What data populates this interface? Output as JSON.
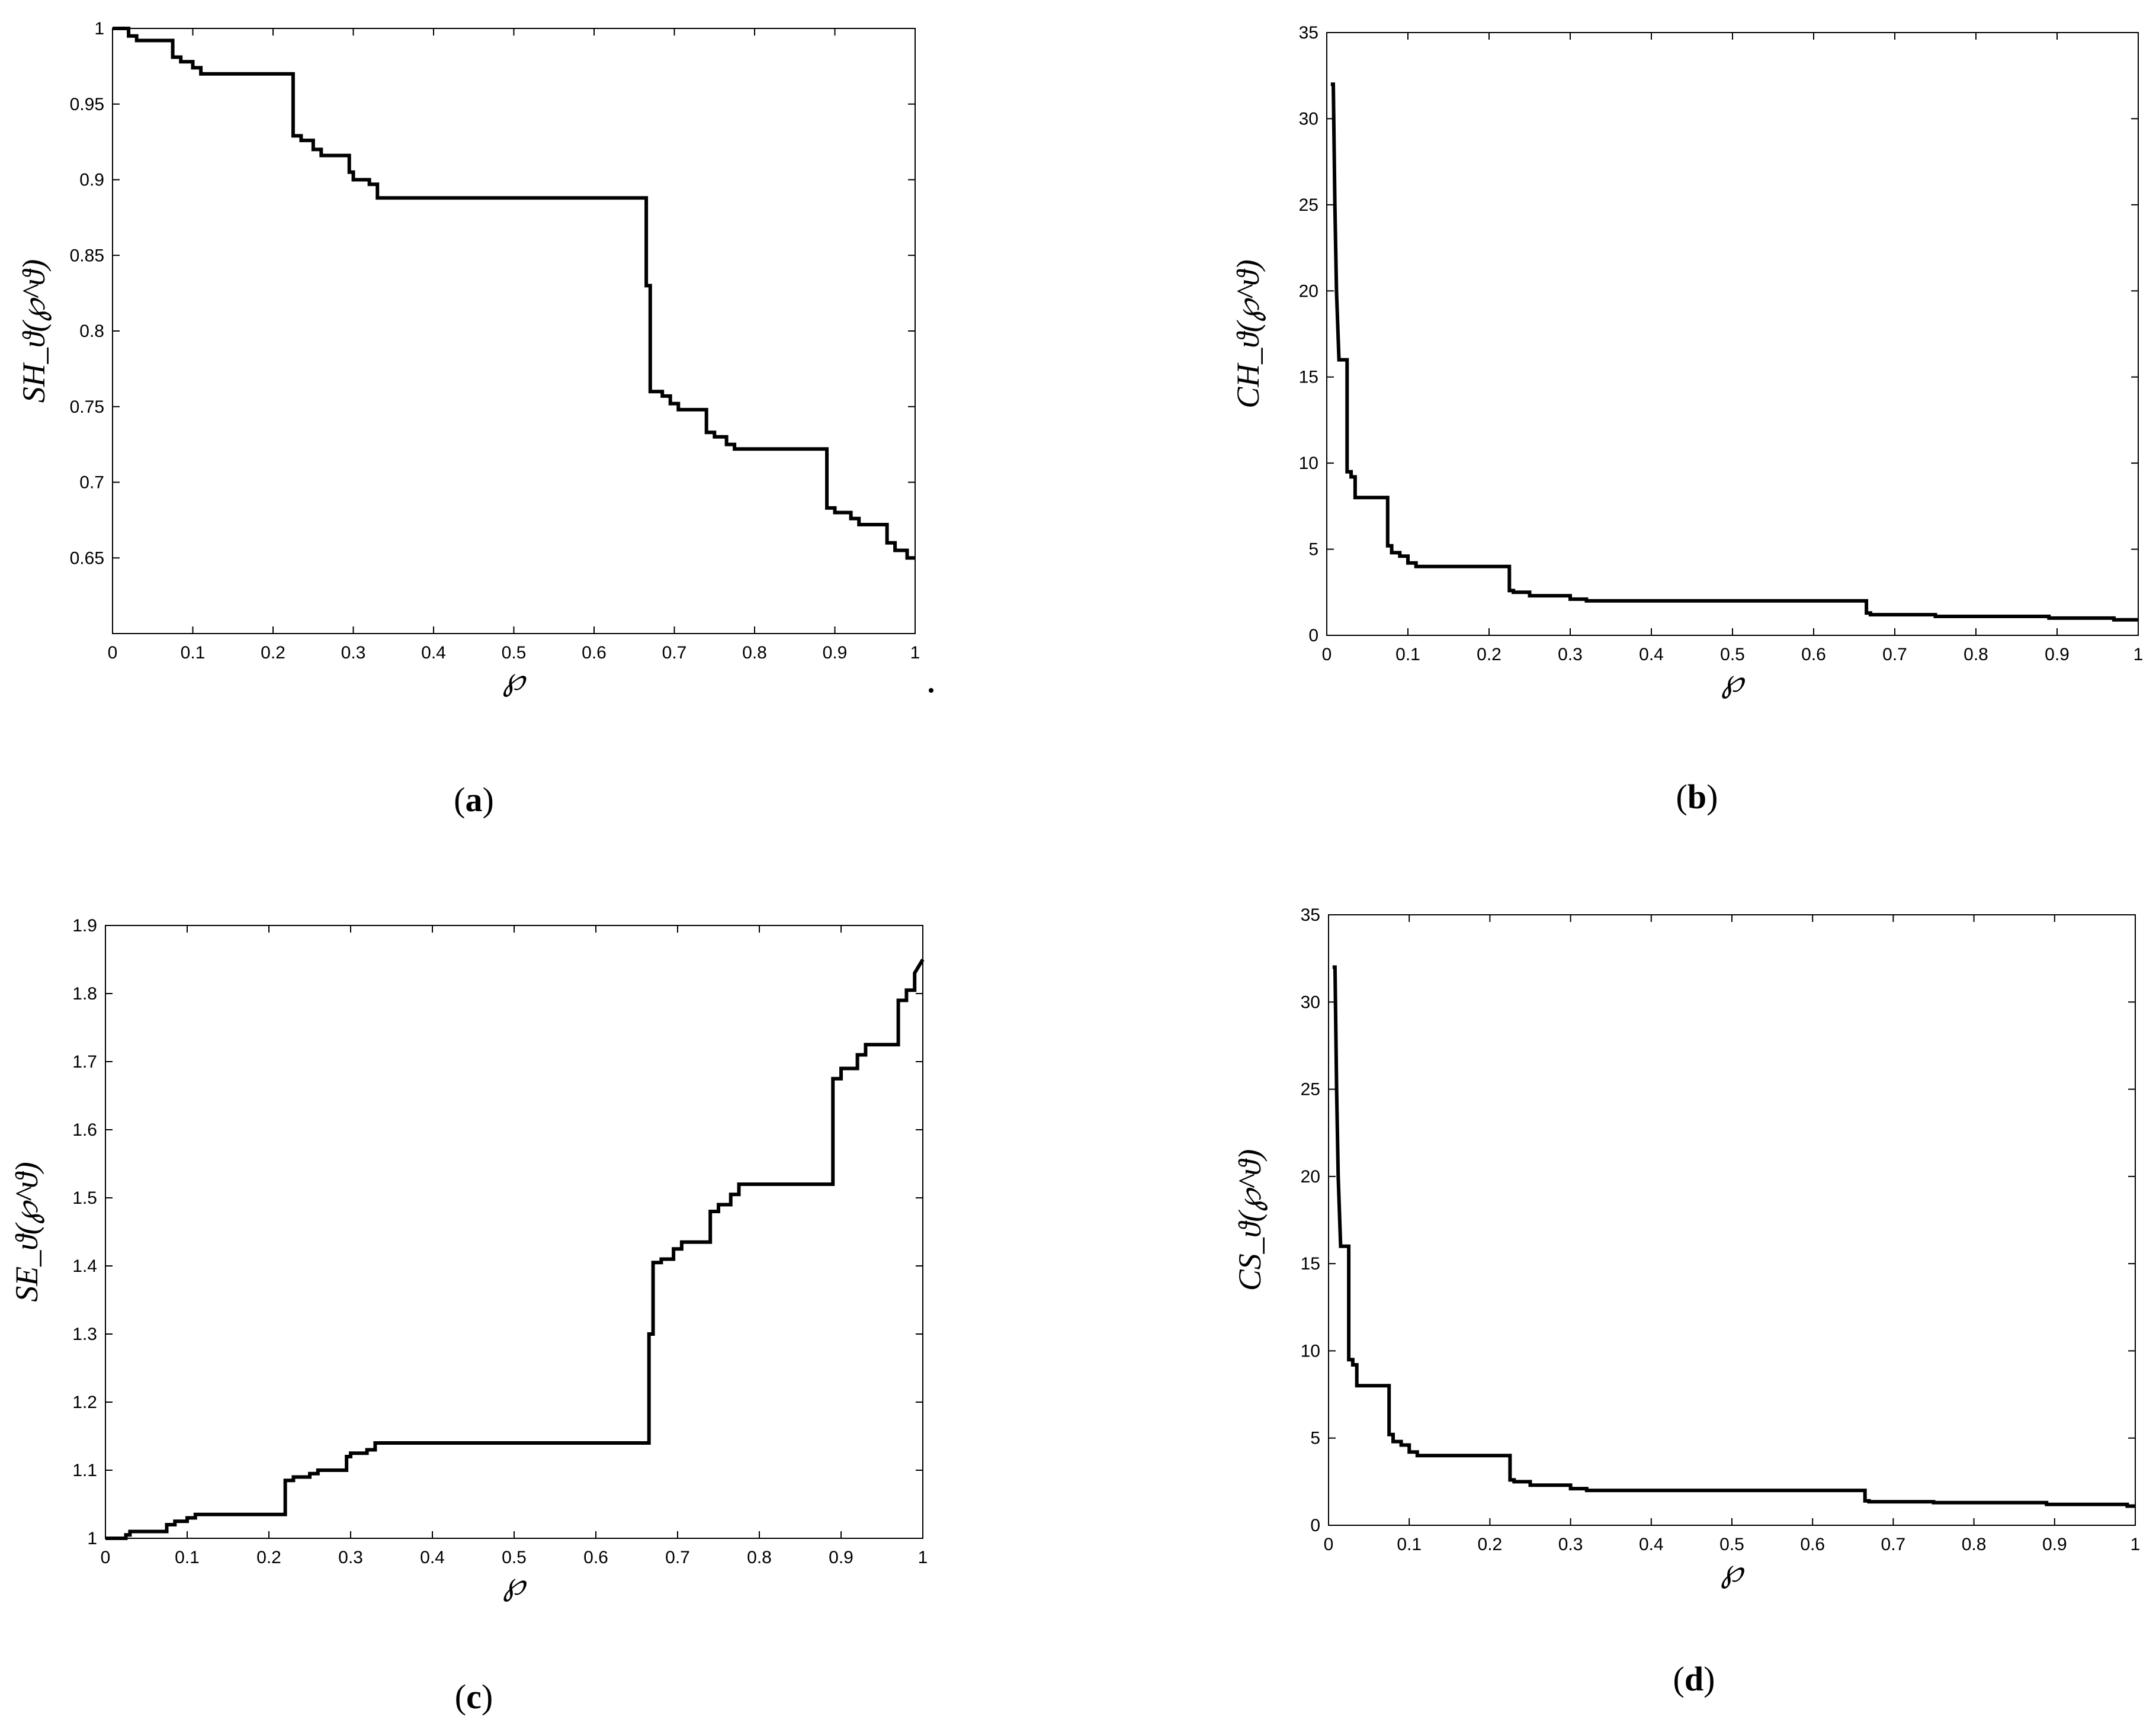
{
  "chart_data": [
    {
      "panel": "a",
      "type": "line",
      "title": "",
      "xlabel": "℘",
      "ylabel": "SH_ϑ(℘^ϑ)",
      "xlim": [
        0,
        1
      ],
      "ylim": [
        0.6,
        1
      ],
      "xticks": [
        "0",
        "0.1",
        "0.2",
        "0.3",
        "0.4",
        "0.5",
        "0.6",
        "0.7",
        "0.8",
        "0.9",
        "1"
      ],
      "yticks": [
        "0.65",
        "0.7",
        "0.75",
        "0.8",
        "0.85",
        "0.9",
        "0.95",
        "1"
      ],
      "grid": false,
      "series": [
        {
          "x": [
            0,
            0.02,
            0.02,
            0.03,
            0.03,
            0.075,
            0.075,
            0.085,
            0.085,
            0.1,
            0.1,
            0.11,
            0.11,
            0.225,
            0.225,
            0.235,
            0.235,
            0.25,
            0.25,
            0.26,
            0.26,
            0.295,
            0.295,
            0.3,
            0.3,
            0.32,
            0.32,
            0.33,
            0.33,
            0.665,
            0.665,
            0.67,
            0.67,
            0.685,
            0.685,
            0.695,
            0.695,
            0.705,
            0.705,
            0.74,
            0.74,
            0.75,
            0.75,
            0.765,
            0.765,
            0.775,
            0.775,
            0.89,
            0.89,
            0.9,
            0.9,
            0.92,
            0.92,
            0.93,
            0.93,
            0.965,
            0.965,
            0.975,
            0.975,
            0.99,
            0.99,
            1
          ],
          "y": [
            1,
            1,
            0.995,
            0.995,
            0.992,
            0.992,
            0.981,
            0.981,
            0.978,
            0.978,
            0.974,
            0.974,
            0.97,
            0.97,
            0.929,
            0.929,
            0.926,
            0.926,
            0.92,
            0.92,
            0.916,
            0.916,
            0.905,
            0.905,
            0.9,
            0.9,
            0.897,
            0.897,
            0.888,
            0.888,
            0.83,
            0.83,
            0.76,
            0.76,
            0.757,
            0.757,
            0.752,
            0.752,
            0.748,
            0.748,
            0.733,
            0.733,
            0.73,
            0.73,
            0.725,
            0.725,
            0.722,
            0.722,
            0.683,
            0.683,
            0.68,
            0.68,
            0.676,
            0.676,
            0.672,
            0.672,
            0.66,
            0.66,
            0.655,
            0.655,
            0.65,
            0.65
          ]
        }
      ],
      "caption": {
        "prefix": "(",
        "letter": "a",
        "suffix": ")"
      }
    },
    {
      "panel": "b",
      "type": "line",
      "title": "",
      "xlabel": "℘",
      "ylabel": "CH_ϑ(℘^ϑ)",
      "xlim": [
        0,
        1
      ],
      "ylim": [
        0,
        35
      ],
      "xticks": [
        "0",
        "0.1",
        "0.2",
        "0.3",
        "0.4",
        "0.5",
        "0.6",
        "0.7",
        "0.8",
        "0.9",
        "1"
      ],
      "yticks": [
        "0",
        "5",
        "10",
        "15",
        "20",
        "25",
        "30",
        "35"
      ],
      "grid": false,
      "series": [
        {
          "x": [
            0.005,
            0.008,
            0.01,
            0.012,
            0.015,
            0.015,
            0.025,
            0.025,
            0.03,
            0.03,
            0.035,
            0.035,
            0.075,
            0.075,
            0.08,
            0.08,
            0.09,
            0.09,
            0.1,
            0.1,
            0.11,
            0.11,
            0.225,
            0.225,
            0.23,
            0.23,
            0.25,
            0.25,
            0.3,
            0.3,
            0.32,
            0.32,
            0.665,
            0.665,
            0.67,
            0.67,
            0.75,
            0.75,
            0.89,
            0.89,
            0.97,
            0.97,
            1
          ],
          "y": [
            32,
            32,
            25,
            20,
            16,
            16,
            16,
            9.5,
            9.5,
            9.2,
            9.2,
            8,
            8,
            5.2,
            5.2,
            4.8,
            4.8,
            4.6,
            4.6,
            4.2,
            4.2,
            4,
            4,
            2.6,
            2.6,
            2.5,
            2.5,
            2.3,
            2.3,
            2.1,
            2.1,
            2,
            2,
            1.3,
            1.3,
            1.2,
            1.2,
            1.1,
            1.1,
            1,
            1,
            0.9,
            0.9
          ]
        }
      ],
      "caption": {
        "prefix": "(",
        "letter": "b",
        "suffix": ")"
      }
    },
    {
      "panel": "c",
      "type": "line",
      "title": "",
      "xlabel": "℘",
      "ylabel": "SE_ϑ(℘^ϑ)",
      "xlim": [
        0,
        1
      ],
      "ylim": [
        1,
        1.9
      ],
      "xticks": [
        "0",
        "0.1",
        "0.2",
        "0.3",
        "0.4",
        "0.5",
        "0.6",
        "0.7",
        "0.8",
        "0.9",
        "1"
      ],
      "yticks": [
        "1",
        "1.1",
        "1.2",
        "1.3",
        "1.4",
        "1.5",
        "1.6",
        "1.7",
        "1.8",
        "1.9"
      ],
      "grid": false,
      "series": [
        {
          "x": [
            0,
            0.025,
            0.025,
            0.03,
            0.03,
            0.075,
            0.075,
            0.085,
            0.085,
            0.1,
            0.1,
            0.11,
            0.11,
            0.22,
            0.22,
            0.23,
            0.23,
            0.25,
            0.25,
            0.26,
            0.26,
            0.295,
            0.295,
            0.3,
            0.3,
            0.32,
            0.32,
            0.33,
            0.33,
            0.665,
            0.665,
            0.67,
            0.67,
            0.68,
            0.68,
            0.695,
            0.695,
            0.705,
            0.705,
            0.74,
            0.74,
            0.75,
            0.75,
            0.765,
            0.765,
            0.775,
            0.775,
            0.89,
            0.89,
            0.9,
            0.9,
            0.92,
            0.92,
            0.93,
            0.93,
            0.97,
            0.97,
            0.98,
            0.98,
            0.99,
            0.99,
            1
          ],
          "y": [
            1,
            1,
            1.005,
            1.005,
            1.01,
            1.01,
            1.02,
            1.02,
            1.025,
            1.025,
            1.03,
            1.03,
            1.035,
            1.035,
            1.085,
            1.085,
            1.09,
            1.09,
            1.095,
            1.095,
            1.1,
            1.1,
            1.12,
            1.12,
            1.125,
            1.125,
            1.13,
            1.13,
            1.14,
            1.14,
            1.3,
            1.3,
            1.405,
            1.405,
            1.41,
            1.41,
            1.425,
            1.425,
            1.435,
            1.435,
            1.48,
            1.48,
            1.49,
            1.49,
            1.505,
            1.505,
            1.52,
            1.52,
            1.675,
            1.675,
            1.69,
            1.69,
            1.71,
            1.71,
            1.725,
            1.725,
            1.79,
            1.79,
            1.805,
            1.805,
            1.83,
            1.85
          ]
        }
      ],
      "caption": {
        "prefix": "(",
        "letter": "c",
        "suffix": ")"
      }
    },
    {
      "panel": "d",
      "type": "line",
      "title": "",
      "xlabel": "℘",
      "ylabel": "CS_ϑ(℘^ϑ)",
      "xlim": [
        0,
        1
      ],
      "ylim": [
        0,
        35
      ],
      "xticks": [
        "0",
        "0.1",
        "0.2",
        "0.3",
        "0.4",
        "0.5",
        "0.6",
        "0.7",
        "0.8",
        "0.9",
        "1"
      ],
      "yticks": [
        "0",
        "5",
        "10",
        "15",
        "20",
        "25",
        "30",
        "35"
      ],
      "grid": false,
      "series": [
        {
          "x": [
            0.005,
            0.008,
            0.01,
            0.012,
            0.015,
            0.015,
            0.025,
            0.025,
            0.03,
            0.03,
            0.035,
            0.035,
            0.075,
            0.075,
            0.08,
            0.08,
            0.09,
            0.09,
            0.1,
            0.1,
            0.11,
            0.11,
            0.225,
            0.225,
            0.23,
            0.23,
            0.25,
            0.25,
            0.3,
            0.3,
            0.32,
            0.32,
            0.665,
            0.665,
            0.67,
            0.67,
            0.75,
            0.75,
            0.89,
            0.89,
            0.99,
            0.99,
            1
          ],
          "y": [
            32,
            32,
            25,
            20,
            16,
            16,
            16,
            9.5,
            9.5,
            9.2,
            9.2,
            8,
            8,
            5.2,
            5.2,
            4.8,
            4.8,
            4.6,
            4.6,
            4.2,
            4.2,
            4,
            4,
            2.6,
            2.6,
            2.5,
            2.5,
            2.3,
            2.3,
            2.1,
            2.1,
            2,
            2,
            1.4,
            1.4,
            1.35,
            1.35,
            1.3,
            1.3,
            1.2,
            1.2,
            1.1,
            1.1
          ]
        }
      ],
      "caption": {
        "prefix": "(",
        "letter": "d",
        "suffix": ")"
      }
    }
  ]
}
